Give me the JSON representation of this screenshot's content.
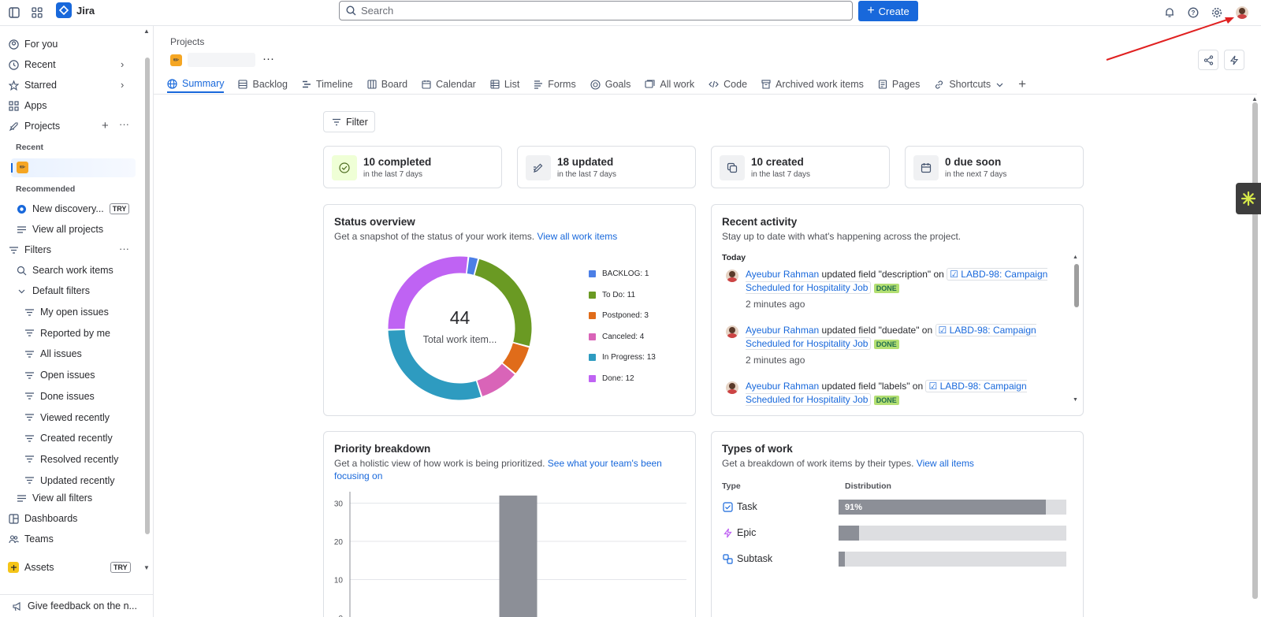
{
  "topbar": {
    "app_name": "Jira",
    "search_placeholder": "Search",
    "create_label": "Create"
  },
  "sidebar": {
    "for_you": "For you",
    "recent": "Recent",
    "starred": "Starred",
    "apps": "Apps",
    "projects": "Projects",
    "recent_header": "Recent",
    "recommended_header": "Recommended",
    "new_discovery": "New discovery...",
    "try_badge": "TRY",
    "view_all_projects": "View all projects",
    "filters": "Filters",
    "search_work_items": "Search work items",
    "default_filters": "Default filters",
    "filter_items": [
      "My open issues",
      "Reported by me",
      "All issues",
      "Open issues",
      "Done issues",
      "Viewed recently",
      "Created recently",
      "Resolved recently",
      "Updated recently"
    ],
    "view_all_filters": "View all filters",
    "dashboards": "Dashboards",
    "teams": "Teams",
    "assets": "Assets",
    "assets_badge": "TRY",
    "feedback": "Give feedback on the n..."
  },
  "header": {
    "breadcrumb": "Projects",
    "more": "···"
  },
  "tabs": [
    "Summary",
    "Backlog",
    "Timeline",
    "Board",
    "Calendar",
    "List",
    "Forms",
    "Goals",
    "All work",
    "Code",
    "Archived work items",
    "Pages",
    "Shortcuts"
  ],
  "filter_label": "Filter",
  "stats": [
    {
      "title": "10 completed",
      "sub": "in the last 7 days",
      "icon": "check-circle-icon"
    },
    {
      "title": "18 updated",
      "sub": "in the last 7 days",
      "icon": "edit-icon"
    },
    {
      "title": "10 created",
      "sub": "in the last 7 days",
      "icon": "create-icon"
    },
    {
      "title": "0 due soon",
      "sub": "in the next 7 days",
      "icon": "calendar-icon"
    }
  ],
  "status_overview": {
    "title": "Status overview",
    "desc": "Get a snapshot of the status of your work items.",
    "link": "View all work items",
    "total": "44",
    "total_label": "Total work item...",
    "legend": [
      {
        "label": "BACKLOG: 1",
        "value": 1,
        "color": "#4c7fe6"
      },
      {
        "label": "To Do: 11",
        "value": 11,
        "color": "#6a9a23"
      },
      {
        "label": "Postponed: 3",
        "value": 3,
        "color": "#e06c1a"
      },
      {
        "label": "Canceled: 4",
        "value": 4,
        "color": "#d964b8"
      },
      {
        "label": "In Progress: 13",
        "value": 13,
        "color": "#2e9bc0"
      },
      {
        "label": "Done: 12",
        "value": 12,
        "color": "#bf63f3"
      }
    ]
  },
  "recent_activity": {
    "title": "Recent activity",
    "desc": "Stay up to date with what's happening across the project.",
    "today": "Today",
    "items": [
      {
        "user": "Ayeubur Rahman",
        "action": "updated field \"description\" on",
        "issue": "LABD-98: Campaign Scheduled for Hospitality Job",
        "status": "DONE",
        "time": "2 minutes ago"
      },
      {
        "user": "Ayeubur Rahman",
        "action": "updated field \"duedate\" on",
        "issue": "LABD-98: Campaign Scheduled for Hospitality Job",
        "status": "DONE",
        "time": "2 minutes ago"
      },
      {
        "user": "Ayeubur Rahman",
        "action": "updated field \"labels\" on",
        "issue": "LABD-98: Campaign Scheduled for Hospitality Job",
        "status": "DONE",
        "time": ""
      }
    ]
  },
  "priority_breakdown": {
    "title": "Priority breakdown",
    "desc": "Get a holistic view of how work is being prioritized.",
    "link": "See what your team's been focusing on"
  },
  "chart_data": {
    "type": "bar",
    "categories": [
      "",
      "",
      "",
      "",
      ""
    ],
    "values": [
      0,
      0,
      32,
      0,
      0
    ],
    "ylim": [
      0,
      33
    ],
    "yticks": [
      0,
      10,
      20,
      30
    ],
    "grid": true
  },
  "types_of_work": {
    "title": "Types of work",
    "desc": "Get a breakdown of work items by their types.",
    "link": "View all items",
    "col_type": "Type",
    "col_distribution": "Distribution",
    "rows": [
      {
        "label": "Task",
        "pct": 91,
        "pct_label": "91%",
        "icon": "task-icon"
      },
      {
        "label": "Epic",
        "pct": 9,
        "pct_label": "",
        "icon": "epic-icon"
      },
      {
        "label": "Subtask",
        "pct": 0,
        "pct_label": "",
        "icon": "subtask-icon"
      }
    ]
  }
}
